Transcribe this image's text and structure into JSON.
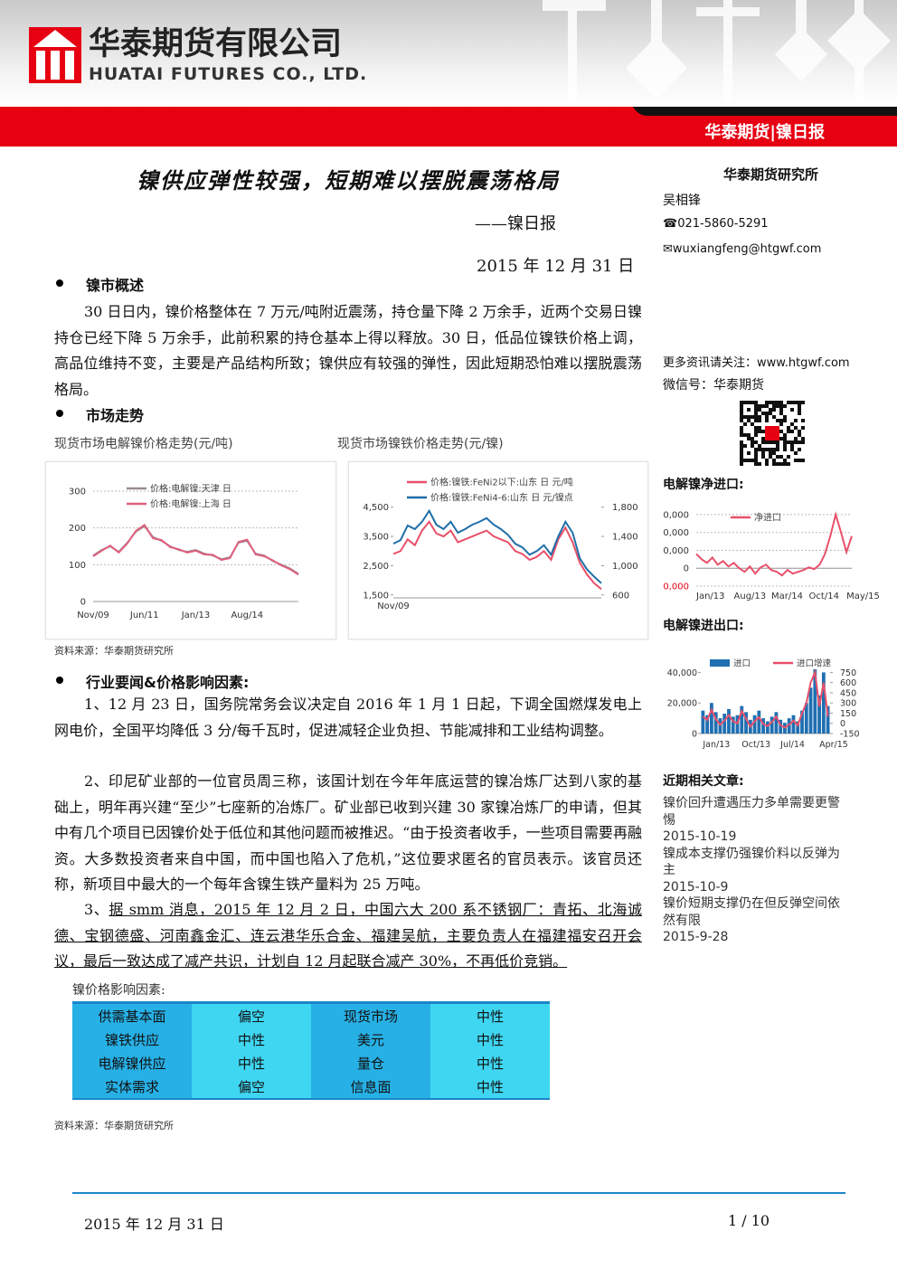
{
  "header": {
    "company_cn": "华泰期货有限公司",
    "company_en": "HUATAI FUTURES CO., LTD.",
    "banner": "华泰期货|镍日报"
  },
  "title": "镍供应弹性较强，短期难以摆脱震荡格局",
  "subtitle": "——镍日报",
  "date": "2015 年 12 月 31 日",
  "sections": [
    {
      "heading": "镍市概述",
      "paragraphs": [
        "30 日日内，镍价格整体在 7 万元/吨附近震荡，持仓量下降 2 万余手，近两个交易日镍持仓已经下降 5 万余手，此前积累的持仓基本上得以释放。30 日，低品位镍铁价格上调，高品位维持不变，主要是产品结构所致；镍供应有较强的弹性，因此短期恐怕难以摆脱震荡格局。"
      ]
    },
    {
      "heading": "市场走势"
    },
    {
      "heading": "行业要闻&价格影响因素:",
      "paragraphs": [
        "1、12 月 23 日，国务院常务会议决定自 2016 年 1 月 1 日起，下调全国燃煤发电上网电价，全国平均降低 3 分/每千瓦时，促进减轻企业负担、节能减排和工业结构调整。",
        "2、印尼矿业部的一位官员周三称，该国计划在今年年底运营的镍冶炼厂达到八家的基础上，明年再兴建“至少”七座新的冶炼厂。矿业部已收到兴建 30 家镍冶炼厂的申请，但其中有几个项目已因镍价处于低位和其他问题而被推迟。“由于投资者收手，一些项目需要再融资。大多数投资者来自中国，而中国也陷入了危机，”这位要求匿名的官员表示。该官员还称，新项目中最大的一个每年含镍生铁产量料为 25 万吨。",
        {
          "number": "3、",
          "text": "据 smm 消息，2015 年 12 月 2 日，中国六大 200 系不锈钢厂：青拓、北海诚德、宝钢德盛、河南鑫金汇、连云港华乐合金、福建吴航，主要负责人在福建福安召开会议，最后一致达成了减产共识，计划自 12 月起联合减产 30%，不再低价竞销。"
        }
      ]
    }
  ],
  "chart_source": "资料来源：华泰期货研究所",
  "table": {
    "caption": "镍价格影响因素:",
    "rows": [
      [
        "供需基本面",
        "偏空",
        "现货市场",
        "中性"
      ],
      [
        "镍铁供应",
        "中性",
        "美元",
        "中性"
      ],
      [
        "电解镍供应",
        "中性",
        "量仓",
        "中性"
      ],
      [
        "实体需求",
        "偏空",
        "信息面",
        "中性"
      ]
    ]
  },
  "table_source": "资料来源：华泰期货研究所",
  "sidebar": {
    "institute": "华泰期货研究所",
    "analyst": "吴相锋",
    "phone": "021-5860-5291",
    "email": "wuxiangfeng@htgwf.com",
    "more": "更多资讯请关注：www.htgwf.com",
    "wechat": "微信号：华泰期货",
    "recent_heading": "近期相关文章:",
    "articles": [
      {
        "title": "镍价回升遭遇压力多单需要更警惕",
        "date": "2015-10-19"
      },
      {
        "title": "镍成本支撑仍强镍价料以反弹为主",
        "date": "2015-10-9"
      },
      {
        "title": "镍价短期支撑仍在但反弹空间依然有限",
        "date": "2015-9-28"
      }
    ]
  },
  "footer": {
    "date": "2015 年 12 月 31 日",
    "page": "1 / 10"
  },
  "chart_data": [
    {
      "type": "line",
      "title": "现货市场电解镍价格走势(元/吨)",
      "grid": true,
      "categories": [
        "Nov/09",
        null,
        null,
        null,
        null,
        null,
        "Jun/11",
        null,
        null,
        null,
        null,
        null,
        "Jan/13",
        null,
        null,
        null,
        null,
        null,
        "Aug/14",
        null,
        null,
        null,
        null,
        null,
        null
      ],
      "ylim": [
        0,
        300
      ],
      "yticks": [
        0,
        100,
        200,
        300
      ],
      "series": [
        {
          "name": "价格:电解镍:天津 日",
          "color": "#9a8a92",
          "values": [
            125,
            140,
            150,
            135,
            160,
            190,
            205,
            175,
            165,
            150,
            140,
            135,
            140,
            130,
            125,
            115,
            120,
            160,
            165,
            130,
            125,
            110,
            100,
            90,
            75
          ]
        },
        {
          "name": "价格:电解镍:上海 日",
          "color": "#e0607e",
          "values": [
            123,
            138,
            152,
            133,
            158,
            192,
            208,
            172,
            167,
            148,
            142,
            133,
            138,
            128,
            127,
            113,
            118,
            162,
            168,
            128,
            123,
            112,
            98,
            88,
            73
          ]
        }
      ]
    },
    {
      "type": "line",
      "title": "现货市场镍铁价格走势(元/镍)",
      "grid": false,
      "categories": [
        "Nov/09",
        null,
        null,
        null,
        null,
        null,
        null,
        null,
        null,
        null,
        null,
        null,
        null,
        null,
        null,
        null,
        null,
        null,
        null,
        null,
        null,
        null,
        null,
        null,
        null,
        null,
        null,
        null,
        null,
        null
      ],
      "ylim": [
        1400,
        4800
      ],
      "yticks": [
        {
          "value": 1500,
          "label": "1,500"
        },
        {
          "value": 2500,
          "label": "2,500"
        },
        {
          "value": 3500,
          "label": "3,500"
        },
        {
          "value": 4500,
          "label": "4,500"
        }
      ],
      "y2lim": [
        560,
        1920
      ],
      "y2ticks": [
        600,
        {
          "value": 1000,
          "label": "1,000"
        },
        {
          "value": 1400,
          "label": "1,400"
        },
        {
          "value": 1800,
          "label": "1,800"
        }
      ],
      "series": [
        {
          "name": "价格:镍铁:FeNi2以下:山东 日 元/吨",
          "color": "#e8506a",
          "values": [
            2900,
            3000,
            3400,
            3200,
            3700,
            4000,
            3600,
            3500,
            3700,
            3300,
            3400,
            3500,
            3600,
            3700,
            3500,
            3400,
            3300,
            3000,
            2900,
            2700,
            2800,
            3000,
            2700,
            3400,
            3800,
            3300,
            2600,
            2200,
            1900,
            1700
          ]
        },
        {
          "name": "价格:镍铁:FeNi4-6:山东 日 元/镍点",
          "color": "#1f6fa8",
          "axis": "y2",
          "values": [
            1300,
            1350,
            1550,
            1500,
            1600,
            1750,
            1560,
            1500,
            1600,
            1450,
            1500,
            1560,
            1600,
            1650,
            1560,
            1500,
            1420,
            1300,
            1250,
            1150,
            1200,
            1280,
            1150,
            1400,
            1600,
            1450,
            1100,
            950,
            850,
            760
          ]
        }
      ]
    },
    {
      "type": "line",
      "title": "电解镍净进口:",
      "grid": true,
      "categories": [
        "Jan/13",
        null,
        null,
        null,
        null,
        null,
        null,
        "Aug/13",
        null,
        null,
        null,
        null,
        null,
        null,
        "Mar/14",
        null,
        null,
        null,
        null,
        null,
        null,
        "Oct/14",
        null,
        null,
        null,
        null,
        null,
        null,
        "May/15",
        null
      ],
      "ylim": [
        -11000,
        34000
      ],
      "yticks": [
        {
          "value": -10000,
          "label": "0,000"
        },
        0,
        {
          "value": 10000,
          "label": "0,000"
        },
        {
          "value": 20000,
          "label": "0,000"
        },
        {
          "value": 30000,
          "label": "0,000"
        }
      ],
      "series": [
        {
          "name": "净进口",
          "color": "#e8506a",
          "values": [
            8000,
            5000,
            3000,
            6000,
            2000,
            4000,
            1000,
            3000,
            0,
            -2000,
            1000,
            -3000,
            500,
            2000,
            -1000,
            -2000,
            -4000,
            -1000,
            -3000,
            -2000,
            -1000,
            500,
            -500,
            2000,
            8000,
            18000,
            30000,
            20000,
            9000,
            18000
          ]
        }
      ]
    },
    {
      "type": "bar-line",
      "title": "电解镍进出口:",
      "grid": false,
      "categories": [
        "Jan/13",
        null,
        null,
        null,
        null,
        null,
        null,
        null,
        null,
        "Oct/13",
        null,
        null,
        null,
        null,
        null,
        null,
        null,
        null,
        "Jul/14",
        null,
        null,
        null,
        null,
        null,
        null,
        null,
        null,
        "Apr/15",
        null,
        null
      ],
      "ylim": [
        0,
        42000
      ],
      "yticks": [
        0,
        {
          "value": 20000,
          "label": "20,000"
        },
        {
          "value": 40000,
          "label": "40,000"
        }
      ],
      "y2lim": [
        -150,
        795
      ],
      "y2ticks": [
        -150,
        0,
        150,
        300,
        450,
        600,
        750
      ],
      "series": [
        {
          "name": "进口",
          "color": "#1f6fb2",
          "kind": "bar",
          "values": [
            15000,
            12000,
            20000,
            14000,
            10000,
            13000,
            16000,
            11000,
            12000,
            18000,
            14000,
            9000,
            12000,
            15000,
            10000,
            8000,
            11000,
            14000,
            9000,
            7000,
            10000,
            12000,
            8000,
            15000,
            20000,
            30000,
            42000,
            25000,
            40000,
            18000
          ]
        },
        {
          "name": "进口增速",
          "color": "#e8506a",
          "kind": "line",
          "axis": "y2",
          "values": [
            100,
            50,
            200,
            60,
            -20,
            40,
            120,
            30,
            0,
            180,
            70,
            -50,
            30,
            90,
            -10,
            -40,
            20,
            100,
            -30,
            -60,
            -20,
            40,
            -30,
            150,
            300,
            600,
            750,
            250,
            600,
            100
          ]
        }
      ]
    }
  ]
}
